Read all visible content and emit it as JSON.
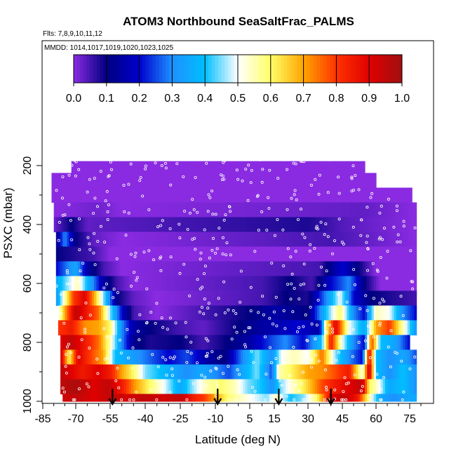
{
  "chart_data": {
    "type": "heatmap",
    "title": "ATOM3 Northbound SeaSaltFrac_PALMS",
    "flights_note": "Flts: 7,8,9,10,11,12",
    "dates_note": "MMDD: 1014,1017,1019,1020,1023,1025",
    "xlabel": "Latitude (deg N)",
    "ylabel": "PSXC (mbar)",
    "xlim": [
      -85,
      85
    ],
    "ylim": [
      1000,
      100
    ],
    "x_ticks": [
      "-85",
      "-70",
      "-55",
      "-40",
      "-25",
      "-10",
      "5",
      "15",
      "30",
      "45",
      "60",
      "75"
    ],
    "x_tick_values": [
      -85,
      -70,
      -55,
      -40,
      -25,
      -10,
      5,
      15,
      30,
      45,
      60,
      75
    ],
    "y_ticks": [
      "200",
      "400",
      "600",
      "800",
      "1000"
    ],
    "y_tick_values": [
      200,
      400,
      600,
      800,
      1000
    ],
    "colorbar": {
      "ticks": [
        "0.0",
        "0.1",
        "0.2",
        "0.3",
        "0.4",
        "0.5",
        "0.6",
        "0.7",
        "0.8",
        "0.9",
        "1.0"
      ],
      "range": [
        0,
        1
      ],
      "colors": [
        "#8a2be2",
        "#000080",
        "#0000cd",
        "#1e90ff",
        "#00bfff",
        "#ffffff",
        "#ffff66",
        "#ffa500",
        "#ff3300",
        "#e00000",
        "#a01010"
      ]
    },
    "arrows_latitude": [
      -54,
      -9,
      17,
      40
    ],
    "layers": [
      {
        "p": 200,
        "ranges": [
          [
            -72,
            0
          ],
          [
            55,
            0
          ]
        ]
      },
      {
        "p": 250,
        "ranges": [
          [
            -81,
            0
          ],
          [
            -70,
            0
          ],
          [
            60,
            0
          ]
        ]
      },
      {
        "p": 300,
        "ranges": [
          [
            -81,
            0
          ],
          [
            76,
            0
          ]
        ]
      },
      {
        "p": 350,
        "ranges": [
          [
            -80,
            0
          ],
          [
            -60,
            0.02
          ],
          [
            -50,
            0
          ],
          [
            55,
            0.03
          ],
          [
            78,
            0
          ]
        ]
      },
      {
        "p": 400,
        "ranges": [
          [
            -80,
            0.02
          ],
          [
            -72,
            0.1
          ],
          [
            -65,
            0.03
          ],
          [
            30,
            0.08
          ],
          [
            45,
            0.04
          ],
          [
            60,
            0.02
          ],
          [
            78,
            0
          ]
        ]
      },
      {
        "p": 450,
        "ranges": [
          [
            -79,
            0.1
          ],
          [
            -75,
            0.3
          ],
          [
            -70,
            0.1
          ],
          [
            -62,
            0.03
          ],
          [
            -50,
            0
          ],
          [
            40,
            0.05
          ],
          [
            55,
            0.03
          ],
          [
            78,
            0
          ]
        ]
      },
      {
        "p": 500,
        "ranges": [
          [
            -79,
            0.1
          ],
          [
            -62,
            0.05
          ],
          [
            -55,
            0
          ],
          [
            78,
            0
          ]
        ]
      },
      {
        "p": 550,
        "ranges": [
          [
            -79,
            0.2
          ],
          [
            -70,
            0.35
          ],
          [
            -65,
            0.15
          ],
          [
            -58,
            0.05
          ],
          [
            -50,
            0
          ],
          [
            35,
            0.05
          ],
          [
            45,
            0.2
          ],
          [
            52,
            0.1
          ],
          [
            60,
            0
          ],
          [
            78,
            0
          ]
        ]
      },
      {
        "p": 600,
        "ranges": [
          [
            -79,
            0.35
          ],
          [
            -74,
            0.45
          ],
          [
            -69,
            0.55
          ],
          [
            -64,
            0.35
          ],
          [
            -58,
            0.15
          ],
          [
            -52,
            0.05
          ],
          [
            -45,
            0
          ],
          [
            10,
            0.05
          ],
          [
            22,
            0.1
          ],
          [
            32,
            0.05
          ],
          [
            40,
            0.2
          ],
          [
            48,
            0.3
          ],
          [
            55,
            0.1
          ],
          [
            62,
            0
          ],
          [
            78,
            0
          ]
        ]
      },
      {
        "p": 650,
        "ranges": [
          [
            -79,
            0.3
          ],
          [
            -75,
            0.55
          ],
          [
            -71,
            0.8
          ],
          [
            -66,
            0.9
          ],
          [
            -62,
            0.7
          ],
          [
            -57,
            0.4
          ],
          [
            -52,
            0.1
          ],
          [
            -45,
            0.03
          ],
          [
            -35,
            0
          ],
          [
            10,
            0.05
          ],
          [
            20,
            0.1
          ],
          [
            30,
            0.08
          ],
          [
            38,
            0.3
          ],
          [
            44,
            0.5
          ],
          [
            50,
            0.2
          ],
          [
            58,
            0.1
          ],
          [
            78,
            0.05
          ]
        ]
      },
      {
        "p": 700,
        "ranges": [
          [
            -78,
            0.5
          ],
          [
            -74,
            0.75
          ],
          [
            -70,
            0.95
          ],
          [
            -65,
            0.85
          ],
          [
            -60,
            0.75
          ],
          [
            -55,
            0.45
          ],
          [
            -50,
            0.2
          ],
          [
            -45,
            0.05
          ],
          [
            -35,
            0
          ],
          [
            5,
            0.1
          ],
          [
            15,
            0.15
          ],
          [
            30,
            0.1
          ],
          [
            38,
            0.4
          ],
          [
            44,
            0.6
          ],
          [
            50,
            0.3
          ],
          [
            55,
            0.2
          ],
          [
            60,
            0.55
          ],
          [
            66,
            0.5
          ],
          [
            72,
            0.3
          ],
          [
            78,
            0.2
          ]
        ]
      },
      {
        "p": 750,
        "ranges": [
          [
            -78,
            0.8
          ],
          [
            -72,
            0.85
          ],
          [
            -66,
            0.72
          ],
          [
            -60,
            0.7
          ],
          [
            -55,
            0.6
          ],
          [
            -50,
            0.3
          ],
          [
            -45,
            0.15
          ],
          [
            -38,
            0.1
          ],
          [
            -25,
            0.05
          ],
          [
            -15,
            0.03
          ],
          [
            0,
            0.1
          ],
          [
            12,
            0.15
          ],
          [
            25,
            0.2
          ],
          [
            35,
            0.15
          ],
          [
            38,
            0.6
          ],
          [
            42,
            0.9
          ],
          [
            48,
            0.5
          ],
          [
            55,
            0.35
          ],
          [
            60,
            0.7
          ],
          [
            66,
            0.8
          ],
          [
            72,
            0.55
          ],
          [
            78,
            0.3
          ]
        ]
      },
      {
        "p": 800,
        "ranges": [
          [
            -77,
            0.9
          ],
          [
            -72,
            0.95
          ],
          [
            -66,
            0.85
          ],
          [
            -60,
            0.75
          ],
          [
            -55,
            0.55
          ],
          [
            -50,
            0.3
          ],
          [
            -45,
            0.12
          ],
          [
            -38,
            0.08
          ],
          [
            -25,
            0.1
          ],
          [
            -15,
            0.05
          ],
          [
            -5,
            0.1
          ],
          [
            5,
            0.15
          ],
          [
            14,
            0.25
          ],
          [
            20,
            0.3
          ],
          [
            28,
            0.2
          ],
          [
            36,
            0.4
          ],
          [
            40,
            0.85
          ],
          [
            45,
            0.5
          ],
          [
            50,
            0.3
          ],
          [
            55,
            0.2
          ],
          [
            58,
            0.8
          ],
          [
            62,
            0.4
          ],
          [
            68,
            0.35
          ],
          [
            75,
            0.2
          ]
        ]
      },
      {
        "p": 850,
        "ranges": [
          [
            -77,
            0.95
          ],
          [
            -73,
            0.6
          ],
          [
            -69,
            0.9
          ],
          [
            -64,
            0.8
          ],
          [
            -58,
            0.7
          ],
          [
            -53,
            0.4
          ],
          [
            -48,
            0.35
          ],
          [
            -42,
            0.3
          ],
          [
            -36,
            0.25
          ],
          [
            -30,
            0.2
          ],
          [
            -22,
            0.25
          ],
          [
            -14,
            0.15
          ],
          [
            -6,
            0.1
          ],
          [
            2,
            0.3
          ],
          [
            8,
            0.45
          ],
          [
            14,
            0.3
          ],
          [
            18,
            0.5
          ],
          [
            24,
            0.55
          ],
          [
            30,
            0.5
          ],
          [
            36,
            0.75
          ],
          [
            42,
            0.45
          ],
          [
            48,
            0.3
          ],
          [
            54,
            0.2
          ],
          [
            57,
            0.9
          ],
          [
            60,
            0.4
          ],
          [
            66,
            0.3
          ],
          [
            72,
            0.35
          ],
          [
            78,
            0.25
          ]
        ]
      },
      {
        "p": 900,
        "ranges": [
          [
            -77,
            0.95
          ],
          [
            -72,
            0.9
          ],
          [
            -67,
            0.85
          ],
          [
            -60,
            0.9
          ],
          [
            -55,
            0.85
          ],
          [
            -50,
            0.7
          ],
          [
            -45,
            0.6
          ],
          [
            -40,
            0.45
          ],
          [
            -34,
            0.4
          ],
          [
            -28,
            0.35
          ],
          [
            -22,
            0.3
          ],
          [
            -16,
            0.35
          ],
          [
            -10,
            0.3
          ],
          [
            -4,
            0.25
          ],
          [
            2,
            0.35
          ],
          [
            8,
            0.45
          ],
          [
            14,
            0.25
          ],
          [
            17,
            0.55
          ],
          [
            22,
            0.6
          ],
          [
            30,
            0.7
          ],
          [
            36,
            0.72
          ],
          [
            42,
            0.78
          ],
          [
            48,
            0.85
          ],
          [
            54,
            0.5
          ],
          [
            57,
            0.95
          ],
          [
            60,
            0.4
          ],
          [
            66,
            0.3
          ],
          [
            72,
            0.4
          ],
          [
            78,
            0.3
          ]
        ]
      },
      {
        "p": 950,
        "ranges": [
          [
            -77,
            0.95
          ],
          [
            -70,
            0.98
          ],
          [
            -62,
            0.9
          ],
          [
            -56,
            0.95
          ],
          [
            -50,
            0.85
          ],
          [
            -44,
            0.7
          ],
          [
            -38,
            0.6
          ],
          [
            -32,
            0.5
          ],
          [
            -25,
            0.35
          ],
          [
            -20,
            0.45
          ],
          [
            -14,
            0.55
          ],
          [
            -8,
            0.6
          ],
          [
            -2,
            0.55
          ],
          [
            4,
            0.45
          ],
          [
            10,
            0.4
          ],
          [
            14,
            0.3
          ],
          [
            18,
            0.45
          ],
          [
            24,
            0.55
          ],
          [
            30,
            0.65
          ],
          [
            36,
            0.78
          ],
          [
            42,
            0.85
          ],
          [
            48,
            0.9
          ],
          [
            54,
            0.95
          ],
          [
            57,
            0.6
          ],
          [
            60,
            0.55
          ],
          [
            66,
            0.35
          ],
          [
            72,
            0.4
          ],
          [
            78,
            0.3
          ]
        ]
      },
      {
        "p": 1000,
        "ranges": [
          [
            -76,
            0.92
          ],
          [
            -70,
            0.95
          ],
          [
            -62,
            0.9
          ],
          [
            -55,
            0.95
          ],
          [
            -48,
            0.92
          ],
          [
            -40,
            0.95
          ],
          [
            -32,
            0.92
          ],
          [
            -25,
            0.95
          ],
          [
            -20,
            0.85
          ],
          [
            -15,
            0.8
          ],
          [
            -10,
            0.7
          ],
          [
            -5,
            0.6
          ],
          [
            0,
            0.55
          ],
          [
            6,
            0.5
          ],
          [
            12,
            0.45
          ],
          [
            16,
            0.55
          ],
          [
            22,
            0.4
          ],
          [
            28,
            0.45
          ],
          [
            34,
            0.6
          ],
          [
            40,
            0.9
          ],
          [
            46,
            0.95
          ],
          [
            52,
            0.85
          ],
          [
            58,
            0.5
          ],
          [
            62,
            0.35
          ],
          [
            68,
            0.3
          ],
          [
            74,
            0.35
          ],
          [
            78,
            0.35
          ]
        ]
      }
    ]
  }
}
